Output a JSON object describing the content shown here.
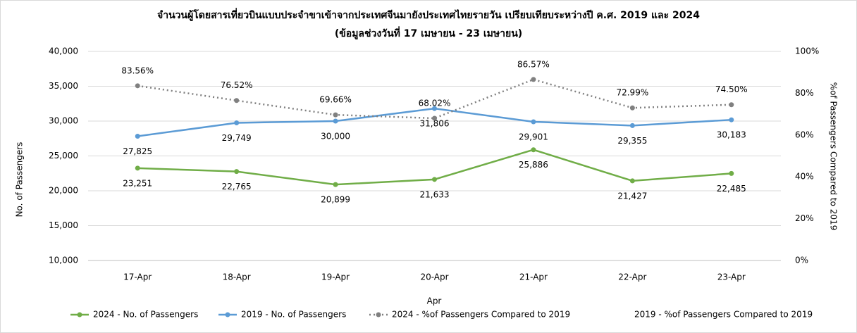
{
  "chart_data": {
    "type": "line",
    "title": "จำนวนผู้โดยสารเที่ยวบินแบบประจำขาเข้าจากประเทศจีนมายังประเทศไทยรายวัน เปรียบเทียบระหว่างปี ค.ศ. 2019 และ 2024",
    "subtitle": "(ข้อมูลช่วงวันที่ 17 เมษายน - 23 เมษายน)",
    "x_label": "Apr",
    "y_label": "No. of Passengers",
    "y2_label": "%of Passengers Compared to 2019",
    "categories": [
      "17-Apr",
      "18-Apr",
      "19-Apr",
      "20-Apr",
      "21-Apr",
      "22-Apr",
      "23-Apr"
    ],
    "ylim": [
      10000,
      40000
    ],
    "yticks": [
      {
        "value": 10000,
        "label": "10,000"
      },
      {
        "value": 15000,
        "label": "15,000"
      },
      {
        "value": 20000,
        "label": "20,000"
      },
      {
        "value": 25000,
        "label": "25,000"
      },
      {
        "value": 30000,
        "label": "30,000"
      },
      {
        "value": 35000,
        "label": "35,000"
      },
      {
        "value": 40000,
        "label": "40,000"
      }
    ],
    "y2lim": [
      0,
      100
    ],
    "y2ticks": [
      {
        "value": 0,
        "label": "0%"
      },
      {
        "value": 20,
        "label": "20%"
      },
      {
        "value": 40,
        "label": "40%"
      },
      {
        "value": 60,
        "label": "60%"
      },
      {
        "value": 80,
        "label": "80%"
      },
      {
        "value": 100,
        "label": "100%"
      }
    ],
    "grid": true,
    "legend": "bottom",
    "series": [
      {
        "name": "2024 - No. of Passengers",
        "color": "#70ad47",
        "style": "solid",
        "label_pos": "below",
        "values": [
          23251,
          22765,
          20899,
          21633,
          25886,
          21427,
          22485
        ],
        "value_labels": [
          "23,251",
          "22,765",
          "20,899",
          "21,633",
          "25,886",
          "21,427",
          "22,485"
        ]
      },
      {
        "name": "2019 - No. of Passengers",
        "color": "#5b9bd5",
        "style": "solid",
        "label_pos": "below",
        "values": [
          27825,
          29749,
          30000,
          31806,
          29901,
          29355,
          30183
        ],
        "value_labels": [
          "27,825",
          "29,749",
          "30,000",
          "31,806",
          "29,901",
          "29,355",
          "30,183"
        ]
      },
      {
        "name": "2024 - %of Passengers Compared to 2019",
        "color": "#808080",
        "style": "dotted",
        "axis": "y2",
        "label_pos": "above",
        "values": [
          83.56,
          76.52,
          69.66,
          68.02,
          86.57,
          72.99,
          74.5
        ],
        "value_labels": [
          "83.56%",
          "76.52%",
          "69.66%",
          "68.02%",
          "86.57%",
          "72.99%",
          "74.50%"
        ]
      },
      {
        "name": "2019 - %of Passengers Compared to 2019",
        "color": "transparent",
        "style": "solid",
        "axis": "y2",
        "values": [
          null,
          null,
          null,
          null,
          null,
          null,
          null
        ]
      }
    ]
  }
}
